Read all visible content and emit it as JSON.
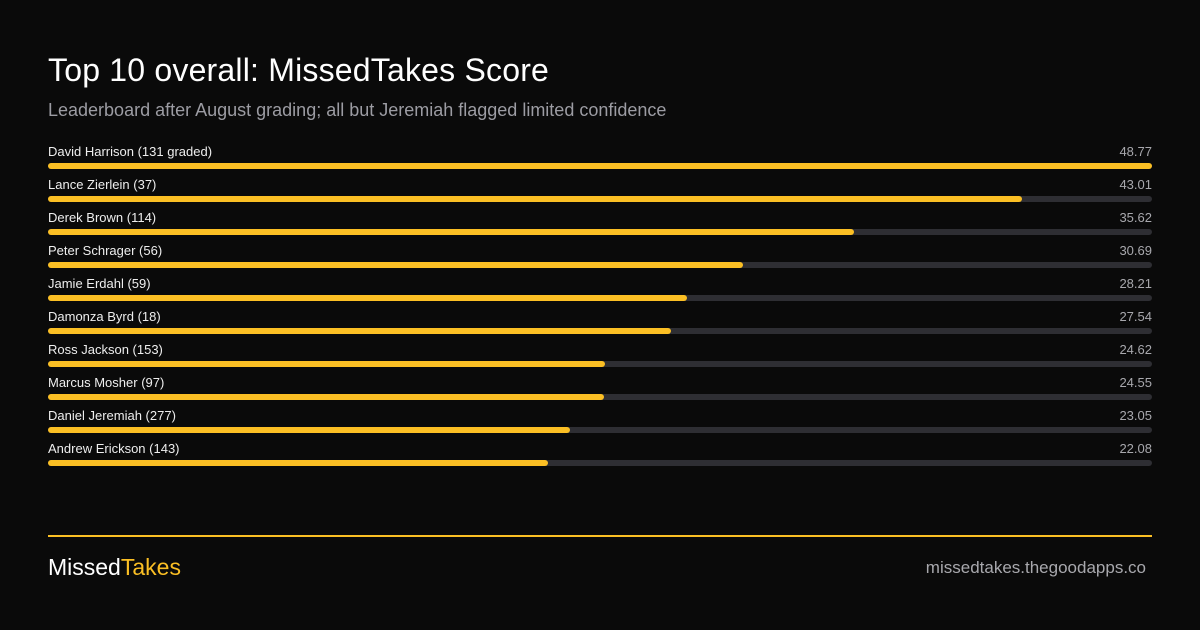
{
  "colors": {
    "background": "#0a0a0a",
    "accent": "#fbbf24",
    "track": "#2e2e33",
    "muted": "#9c9ca3"
  },
  "chart_data": {
    "type": "bar",
    "orientation": "horizontal",
    "title": "Top 10 overall: MissedTakes Score",
    "subtitle": "Leaderboard after August grading; all but Jeremiah flagged limited confidence",
    "categories": [
      "David Harrison (131 graded)",
      "Lance Zierlein (37)",
      "Derek Brown (114)",
      "Peter Schrager (56)",
      "Jamie Erdahl (59)",
      "Damonza Byrd (18)",
      "Ross Jackson (153)",
      "Marcus Mosher (97)",
      "Daniel Jeremiah (277)",
      "Andrew Erickson (143)"
    ],
    "values": [
      48.77,
      43.01,
      35.62,
      30.69,
      28.21,
      27.54,
      24.62,
      24.55,
      23.05,
      22.08
    ],
    "value_labels": [
      "48.77",
      "43.01",
      "35.62",
      "30.69",
      "28.21",
      "27.54",
      "24.62",
      "24.55",
      "23.05",
      "22.08"
    ],
    "xlim": [
      0,
      48.77
    ],
    "grid": false,
    "legend": "none"
  },
  "footer": {
    "brand_part1": "Missed",
    "brand_part2": "Takes",
    "site": "missedtakes.thegoodapps.co"
  }
}
